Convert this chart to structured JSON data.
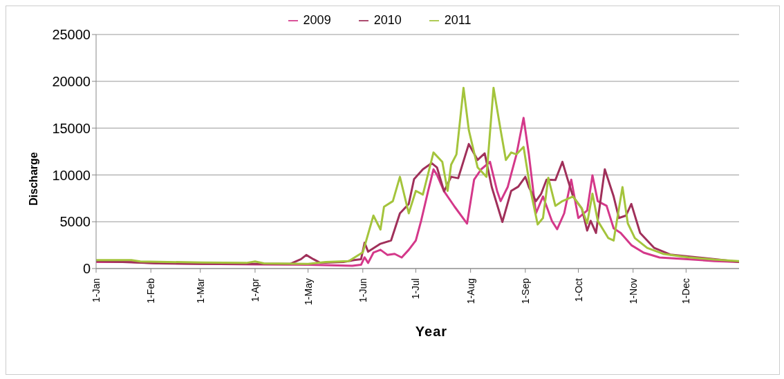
{
  "chart_data": {
    "type": "line",
    "xlabel": "Year",
    "ylabel": "Discharge",
    "xlim": [
      "--01-01",
      "--12-31"
    ],
    "xticks": [
      {
        "value": "--01-01",
        "label": "1-Jan"
      },
      {
        "value": "--02-01",
        "label": "1-Feb"
      },
      {
        "value": "--03-01",
        "label": "1-Mar"
      },
      {
        "value": "--04-01",
        "label": "1-Apr"
      },
      {
        "value": "--05-01",
        "label": "1-May"
      },
      {
        "value": "--06-01",
        "label": "1-Jun"
      },
      {
        "value": "--07-01",
        "label": "1-Jul"
      },
      {
        "value": "--08-01",
        "label": "1-Aug"
      },
      {
        "value": "--09-01",
        "label": "1-Sep"
      },
      {
        "value": "--10-01",
        "label": "1-Oct"
      },
      {
        "value": "--11-01",
        "label": "1-Nov"
      },
      {
        "value": "--12-01",
        "label": "1-Dec"
      }
    ],
    "ylim": [
      0,
      25000
    ],
    "yticks": [
      0,
      5000,
      10000,
      15000,
      20000,
      25000
    ],
    "grid": "y",
    "legend": "top",
    "marker": "none",
    "line_style": "solid",
    "series": [
      {
        "name": "2009",
        "color": "#d4388a",
        "x": [
          "--01-01",
          "--01-21",
          "--02-05",
          "--03-02",
          "--04-01",
          "--05-01",
          "--05-26",
          "--05-31",
          "--06-02",
          "--06-04",
          "--06-07",
          "--06-11",
          "--06-15",
          "--06-19",
          "--06-23",
          "--06-27",
          "--07-01",
          "--07-04",
          "--07-08",
          "--07-11",
          "--07-13",
          "--07-17",
          "--07-23",
          "--07-30",
          "--08-03",
          "--08-07",
          "--08-12",
          "--08-16",
          "--08-18",
          "--08-22",
          "--08-27",
          "--08-31",
          "--09-03",
          "--09-07",
          "--09-11",
          "--09-16",
          "--09-19",
          "--09-23",
          "--09-27",
          "--10-01",
          "--10-06",
          "--10-09",
          "--10-12",
          "--10-17",
          "--10-21",
          "--10-25",
          "--10-31",
          "--11-07",
          "--11-16",
          "--12-02",
          "--12-17",
          "--12-31"
        ],
        "values": [
          700,
          700,
          550,
          500,
          450,
          400,
          300,
          400,
          1200,
          600,
          1700,
          2000,
          1450,
          1570,
          1180,
          2000,
          3000,
          5100,
          8300,
          10600,
          10000,
          8250,
          6600,
          4800,
          9500,
          10600,
          11400,
          8300,
          7200,
          8700,
          12200,
          16100,
          12200,
          5900,
          7700,
          5100,
          4200,
          5900,
          9500,
          5400,
          6200,
          9950,
          7200,
          6700,
          4300,
          3800,
          2500,
          1700,
          1180,
          1000,
          800,
          700
        ]
      },
      {
        "name": "2010",
        "color": "#a0305a",
        "x": [
          "--01-01",
          "--01-16",
          "--02-05",
          "--03-02",
          "--04-01",
          "--04-21",
          "--04-27",
          "--04-30",
          "--05-04",
          "--05-08",
          "--05-21",
          "--05-27",
          "--05-31",
          "--06-02",
          "--06-04",
          "--06-11",
          "--06-17",
          "--06-22",
          "--06-27",
          "--06-30",
          "--07-05",
          "--07-10",
          "--07-13",
          "--07-17",
          "--07-21",
          "--07-25",
          "--07-31",
          "--08-05",
          "--08-09",
          "--08-13",
          "--08-19",
          "--08-24",
          "--08-28",
          "--09-01",
          "--09-03",
          "--09-07",
          "--09-10",
          "--09-13",
          "--09-18",
          "--09-22",
          "--09-25",
          "--09-28",
          "--10-03",
          "--10-06",
          "--10-08",
          "--10-11",
          "--10-16",
          "--10-21",
          "--10-24",
          "--10-28",
          "--10-31",
          "--11-05",
          "--11-13",
          "--11-22",
          "--12-07",
          "--12-22",
          "--12-31"
        ],
        "values": [
          800,
          700,
          550,
          500,
          500,
          500,
          1000,
          1450,
          1000,
          600,
          700,
          900,
          1000,
          2770,
          1800,
          2650,
          3000,
          5900,
          6900,
          9550,
          10600,
          11260,
          10800,
          8250,
          9800,
          9650,
          13300,
          11600,
          12300,
          8700,
          4980,
          8300,
          8750,
          9800,
          8700,
          7200,
          8000,
          9500,
          9450,
          11400,
          9500,
          7700,
          6400,
          4060,
          5100,
          3800,
          10600,
          7700,
          5400,
          5660,
          6900,
          3800,
          2200,
          1500,
          1200,
          900,
          700
        ]
      },
      {
        "name": "2011",
        "color": "#a4c43c",
        "x": [
          "--01-01",
          "--01-21",
          "--01-26",
          "--03-02",
          "--03-27",
          "--04-01",
          "--04-06",
          "--05-01",
          "--05-11",
          "--05-24",
          "--06-01",
          "--06-07",
          "--06-11",
          "--06-13",
          "--06-18",
          "--06-22",
          "--06-27",
          "--07-01",
          "--07-05",
          "--07-11",
          "--07-16",
          "--07-19",
          "--07-21",
          "--07-24",
          "--07-28",
          "--07-31",
          "--08-05",
          "--08-10",
          "--08-14",
          "--08-18",
          "--08-21",
          "--08-24",
          "--08-27",
          "--08-31",
          "--09-04",
          "--09-08",
          "--09-11",
          "--09-14",
          "--09-18",
          "--09-22",
          "--09-28",
          "--10-03",
          "--10-06",
          "--10-09",
          "--10-12",
          "--10-18",
          "--10-21",
          "--10-26",
          "--10-29",
          "--11-02",
          "--11-09",
          "--11-18",
          "--12-02",
          "--12-17",
          "--12-31"
        ],
        "values": [
          900,
          900,
          750,
          650,
          600,
          750,
          550,
          500,
          700,
          800,
          1730,
          5660,
          4170,
          6600,
          7200,
          9800,
          5900,
          8300,
          7900,
          12400,
          11400,
          8300,
          11100,
          12200,
          19300,
          14800,
          10800,
          9800,
          19300,
          14800,
          11600,
          12400,
          12200,
          13000,
          8300,
          4710,
          5400,
          9700,
          6700,
          7200,
          7700,
          6400,
          4830,
          8000,
          5100,
          3250,
          3000,
          8700,
          4830,
          3250,
          2200,
          1570,
          1200,
          950,
          800
        ]
      }
    ]
  }
}
